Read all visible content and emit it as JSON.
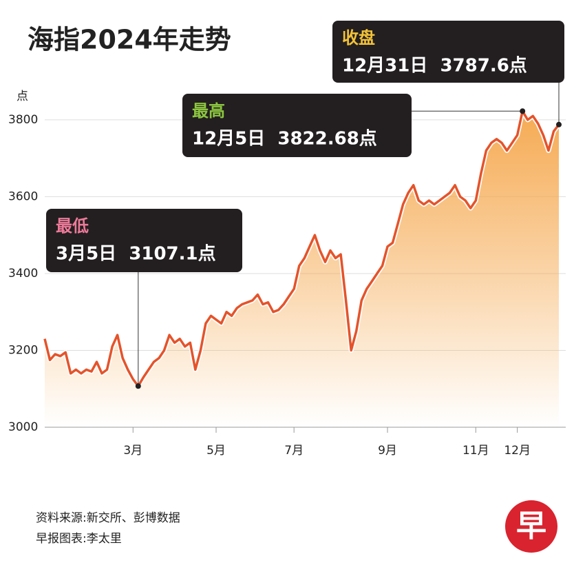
{
  "chart_data": {
    "type": "line",
    "title": "海指2024年走势",
    "y_label": "点",
    "categories": [
      null,
      null,
      null,
      null,
      null,
      null,
      null,
      null,
      null,
      null,
      null,
      null,
      null,
      null,
      null,
      null,
      null,
      "3月",
      null,
      null,
      null,
      null,
      null,
      null,
      null,
      null,
      null,
      null,
      null,
      null,
      null,
      null,
      null,
      "5月",
      null,
      null,
      null,
      null,
      null,
      null,
      null,
      null,
      null,
      null,
      null,
      null,
      null,
      null,
      "7月",
      null,
      null,
      null,
      null,
      null,
      null,
      null,
      null,
      null,
      null,
      null,
      null,
      null,
      null,
      null,
      null,
      null,
      "9月",
      null,
      null,
      null,
      null,
      null,
      null,
      null,
      null,
      null,
      null,
      null,
      null,
      null,
      null,
      null,
      null,
      "11月",
      null,
      null,
      null,
      null,
      null,
      null,
      null,
      "12月",
      null,
      null,
      null,
      null,
      null,
      null,
      null,
      null
    ],
    "values": [
      3230,
      3175,
      3190,
      3185,
      3195,
      3140,
      3150,
      3140,
      3150,
      3145,
      3170,
      3140,
      3150,
      3210,
      3240,
      3180,
      3150,
      3125,
      3107.1,
      3130,
      3150,
      3170,
      3180,
      3200,
      3240,
      3220,
      3230,
      3210,
      3220,
      3150,
      3200,
      3270,
      3290,
      3280,
      3270,
      3300,
      3290,
      3310,
      3320,
      3325,
      3330,
      3345,
      3320,
      3325,
      3300,
      3305,
      3320,
      3340,
      3360,
      3420,
      3440,
      3470,
      3500,
      3460,
      3430,
      3460,
      3440,
      3450,
      3330,
      3200,
      3250,
      3330,
      3360,
      3380,
      3400,
      3420,
      3470,
      3480,
      3530,
      3580,
      3610,
      3630,
      3590,
      3580,
      3590,
      3580,
      3590,
      3600,
      3610,
      3630,
      3600,
      3590,
      3570,
      3590,
      3660,
      3720,
      3740,
      3750,
      3740,
      3720,
      3740,
      3760,
      3822.68,
      3800,
      3810,
      3790,
      3760,
      3720,
      3770,
      3787.6
    ],
    "color": "#e5532a",
    "area_color": "#f5a64a",
    "ylim": [
      3000,
      3850
    ],
    "yticks": [
      3000,
      3200,
      3400,
      3600,
      3800
    ],
    "grid": true,
    "annotations": [
      {
        "title": "最低",
        "label": "3月5日  3107.1点",
        "color": "#ee7a9a"
      },
      {
        "title": "最高",
        "label": "12月5日  3822.68点",
        "color": "#8cc63f"
      },
      {
        "title": "收盘",
        "label": "12月31日  3787.6点",
        "color": "#f3c338"
      }
    ],
    "source": "资料来源:新交所、彭博数据",
    "credit": "早报图表:李太里",
    "logo": "早"
  }
}
